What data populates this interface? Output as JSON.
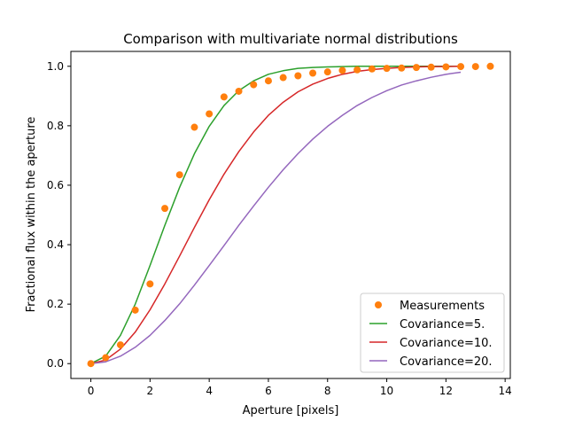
{
  "chart_data": {
    "type": "scatter",
    "title": "Comparison with multivariate normal distributions",
    "xlabel": "Aperture [pixels]",
    "ylabel": "Fractional flux within the aperture",
    "xlim": [
      -0.675,
      14.175
    ],
    "ylim": [
      -0.05,
      1.05
    ],
    "x_ticks": [
      0,
      2,
      4,
      6,
      8,
      10,
      12,
      14
    ],
    "y_ticks": [
      0.0,
      0.2,
      0.4,
      0.6,
      0.8,
      1.0
    ],
    "x_tick_labels": [
      "0",
      "2",
      "4",
      "6",
      "8",
      "10",
      "12",
      "14"
    ],
    "y_tick_labels": [
      "0.0",
      "0.2",
      "0.4",
      "0.6",
      "0.8",
      "1.0"
    ],
    "grid": false,
    "legend_position": "lower-right",
    "series": [
      {
        "name": "Measurements",
        "kind": "scatter",
        "color": "#ff7f0e",
        "x": [
          0,
          0.5,
          1.0,
          1.5,
          2.0,
          2.5,
          3.0,
          3.5,
          4.0,
          4.5,
          5.0,
          5.5,
          6.0,
          6.5,
          7.0,
          7.5,
          8.0,
          8.5,
          9.0,
          9.5,
          10.0,
          10.5,
          11.0,
          11.5,
          12.0,
          12.5,
          13.0,
          13.5
        ],
        "y": [
          0.0,
          0.02,
          0.063,
          0.18,
          0.268,
          0.522,
          0.635,
          0.795,
          0.84,
          0.897,
          0.916,
          0.938,
          0.951,
          0.962,
          0.968,
          0.977,
          0.981,
          0.986,
          0.988,
          0.991,
          0.993,
          0.994,
          0.996,
          0.997,
          0.998,
          0.999,
          0.999,
          1.0
        ]
      },
      {
        "name": "Covariance=5.",
        "kind": "line",
        "color": "#2ca02c",
        "x": [
          0,
          0.5,
          1,
          1.5,
          2,
          2.5,
          3,
          3.5,
          4,
          4.5,
          5,
          5.5,
          6,
          6.5,
          7,
          7.5,
          8,
          8.5,
          9,
          9.5,
          10,
          10.5,
          11,
          11.5,
          12,
          12.5
        ],
        "y": [
          0,
          0.025,
          0.095,
          0.2,
          0.33,
          0.465,
          0.593,
          0.706,
          0.798,
          0.868,
          0.918,
          0.951,
          0.973,
          0.985,
          0.993,
          0.996,
          0.998,
          0.999,
          1.0,
          1.0,
          1.0,
          1.0,
          1.0,
          1.0,
          1.0,
          1.0
        ]
      },
      {
        "name": "Covariance=10.",
        "kind": "line",
        "color": "#d62728",
        "x": [
          0,
          0.5,
          1,
          1.5,
          2,
          2.5,
          3,
          3.5,
          4,
          4.5,
          5,
          5.5,
          6,
          6.5,
          7,
          7.5,
          8,
          8.5,
          9,
          9.5,
          10,
          10.5,
          11,
          11.5,
          12,
          12.5
        ],
        "y": [
          0,
          0.012,
          0.049,
          0.106,
          0.181,
          0.268,
          0.362,
          0.458,
          0.551,
          0.637,
          0.713,
          0.779,
          0.835,
          0.879,
          0.914,
          0.94,
          0.959,
          0.973,
          0.983,
          0.989,
          0.993,
          0.996,
          0.998,
          0.999,
          0.999,
          1.0
        ]
      },
      {
        "name": "Covariance=20.",
        "kind": "line",
        "color": "#9467bd",
        "x": [
          0,
          0.5,
          1,
          1.5,
          2,
          2.5,
          3,
          3.5,
          4,
          4.5,
          5,
          5.5,
          6,
          6.5,
          7,
          7.5,
          8,
          8.5,
          9,
          9.5,
          10,
          10.5,
          11,
          11.5,
          12,
          12.5
        ],
        "y": [
          0,
          0.006,
          0.025,
          0.055,
          0.095,
          0.145,
          0.201,
          0.264,
          0.33,
          0.397,
          0.465,
          0.53,
          0.593,
          0.652,
          0.706,
          0.755,
          0.798,
          0.835,
          0.868,
          0.895,
          0.918,
          0.937,
          0.951,
          0.963,
          0.973,
          0.98
        ]
      }
    ]
  }
}
